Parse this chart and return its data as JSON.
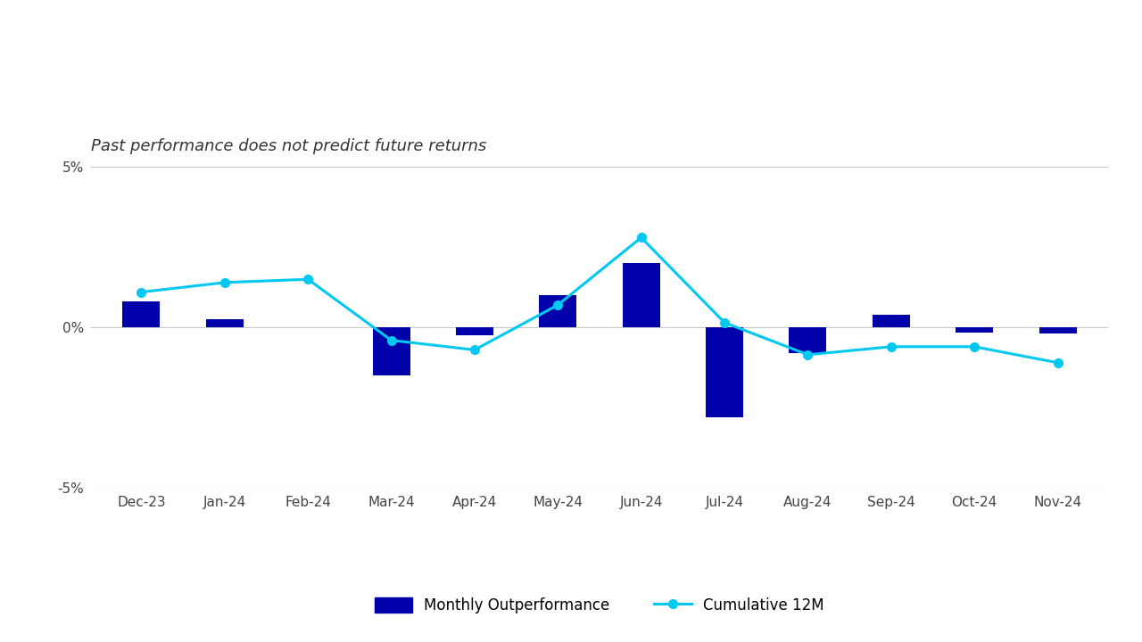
{
  "months": [
    "Dec-23",
    "Jan-24",
    "Feb-24",
    "Mar-24",
    "Apr-24",
    "May-24",
    "Jun-24",
    "Jul-24",
    "Aug-24",
    "Sep-24",
    "Oct-24",
    "Nov-24"
  ],
  "monthly_outperformance": [
    0.8,
    0.25,
    0.0,
    -1.5,
    -0.25,
    1.0,
    2.0,
    -2.8,
    -0.8,
    0.4,
    -0.15,
    -0.2
  ],
  "cumulative_12m": [
    1.1,
    1.4,
    1.5,
    -0.4,
    -0.7,
    0.7,
    2.8,
    0.15,
    -0.85,
    -0.6,
    -0.6,
    -1.1
  ],
  "bar_color": "#0000aa",
  "line_color": "#00c8f0",
  "background_color": "#ffffff",
  "subtitle": "Past performance does not predict future returns",
  "ylim": [
    -5,
    5
  ],
  "yticks": [
    -5,
    0,
    5
  ],
  "ytick_labels": [
    "-5%",
    "0%",
    "5%"
  ],
  "grid_color": "#c8c8c8",
  "bar_width": 0.45,
  "line_width": 2.2,
  "marker_size": 7,
  "legend_monthly": "Monthly Outperformance",
  "legend_cumulative": "Cumulative 12M",
  "subtitle_fontsize": 13,
  "tick_fontsize": 11,
  "legend_fontsize": 12
}
